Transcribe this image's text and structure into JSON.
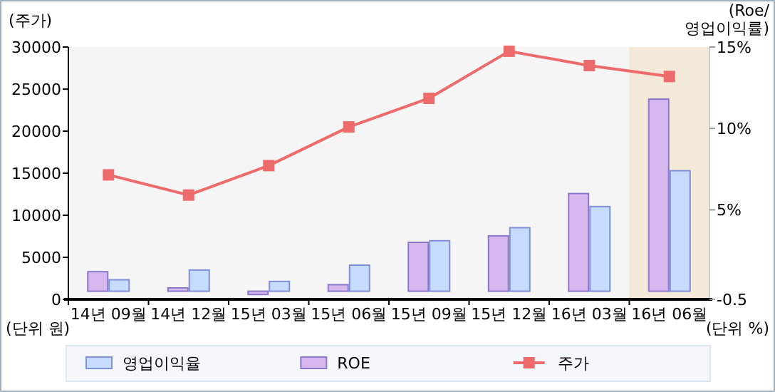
{
  "chart_data": {
    "type": "bar",
    "ylabel": "(주가)",
    "y2label": "(Roe/\n영업이익률)",
    "categories": [
      "14년 09월",
      "14년 12월",
      "15년 03월",
      "15년 06월",
      "15년 09월",
      "15년 12월",
      "16년 03월",
      "16년 06월"
    ],
    "series": [
      {
        "name": "영업이익율",
        "axis": "y2",
        "color": "#c5dcff",
        "values": [
          0.7,
          1.3,
          0.6,
          1.6,
          3.1,
          3.9,
          5.2,
          7.4
        ]
      },
      {
        "name": "ROE",
        "axis": "y2",
        "color": "#d6b8ee",
        "values": [
          1.2,
          0.2,
          -0.2,
          0.4,
          3.0,
          3.4,
          6.0,
          11.8
        ]
      },
      {
        "name": "주가",
        "type": "line",
        "color": "#ee6b6b",
        "marker": "square",
        "values": [
          14800,
          12400,
          15900,
          20500,
          23900,
          29500,
          27800,
          26500
        ]
      }
    ],
    "ylim": [
      0,
      30000
    ],
    "yticks": [
      0,
      5000,
      10000,
      15000,
      20000,
      25000,
      30000
    ],
    "y2lim": [
      -0.5,
      15
    ],
    "y2ticks": [
      {
        "value": -0.5,
        "label": "-0.5"
      },
      {
        "value": 5,
        "label": "5%"
      },
      {
        "value": 10,
        "label": "10%"
      },
      {
        "value": 15,
        "label": "15%"
      }
    ],
    "bands": [
      {
        "axis": "x",
        "from": "16년 06월",
        "to": "16년 06월",
        "color": "#f3e9d8"
      }
    ],
    "annotations": [
      "(단위 원)",
      "(단위 %)"
    ],
    "legend": "bottom"
  }
}
